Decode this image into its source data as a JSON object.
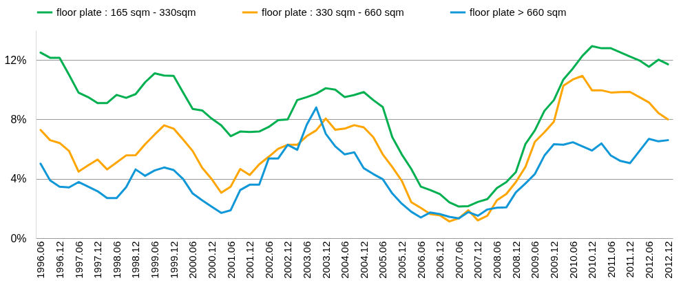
{
  "chart_data": {
    "type": "line",
    "categories": [
      "1996.06",
      null,
      "1996.12",
      null,
      "1997.06",
      null,
      "1997.12",
      null,
      "1998.06",
      null,
      "1998.12",
      null,
      "1999.06",
      null,
      "1999.12",
      null,
      "2000.06",
      null,
      "2000.12",
      null,
      "2001.06",
      null,
      "2001.12",
      null,
      "2002.06",
      null,
      "2002.12",
      null,
      "2003.06",
      null,
      "2003.12",
      null,
      "2004.06",
      null,
      "2004.12",
      null,
      "2005.06",
      null,
      "2005.12",
      null,
      "2006.06",
      null,
      "2006.12",
      null,
      "2007.06",
      null,
      "2007.12",
      null,
      "2008.06",
      null,
      "2008.12",
      null,
      "2009.06",
      null,
      "2009.12",
      null,
      "2010.06",
      null,
      "2010.12",
      null,
      "2011.06",
      null,
      "2011.12",
      null,
      "2012.06",
      null,
      "2012.12"
    ],
    "series": [
      {
        "name": "floor plate : 165 sqm - 330sqm",
        "color": "#00b050",
        "values": [
          12.5,
          12.15,
          12.15,
          11.0,
          9.8,
          9.5,
          9.1,
          9.1,
          9.65,
          9.45,
          9.7,
          10.5,
          11.1,
          10.95,
          10.93,
          9.8,
          8.7,
          8.6,
          8.05,
          7.6,
          6.87,
          7.18,
          7.15,
          7.18,
          7.49,
          7.95,
          8.0,
          9.3,
          9.5,
          9.73,
          10.1,
          10.0,
          9.5,
          9.64,
          9.84,
          9.3,
          8.83,
          6.8,
          5.64,
          4.66,
          3.47,
          3.24,
          2.97,
          2.42,
          2.13,
          2.16,
          2.44,
          2.63,
          3.37,
          3.78,
          4.45,
          6.33,
          7.26,
          8.57,
          9.3,
          10.69,
          11.43,
          12.28,
          12.93,
          12.79,
          12.79,
          12.51,
          12.23,
          11.97,
          11.54,
          12.02,
          11.71
        ]
      },
      {
        "name": "floor plate : 330 sqm - 660 sqm",
        "color": "#ffa500",
        "values": [
          7.29,
          6.6,
          6.41,
          5.87,
          4.48,
          4.9,
          5.3,
          4.63,
          5.1,
          5.57,
          5.59,
          6.33,
          6.98,
          7.6,
          7.38,
          6.64,
          5.87,
          4.74,
          3.98,
          3.06,
          3.47,
          4.66,
          4.25,
          4.97,
          5.48,
          6.02,
          6.29,
          6.29,
          6.87,
          7.26,
          8.06,
          7.3,
          7.38,
          7.61,
          7.46,
          6.8,
          5.64,
          4.79,
          3.86,
          2.42,
          2.04,
          1.62,
          1.54,
          1.13,
          1.34,
          1.88,
          1.2,
          1.51,
          2.55,
          2.98,
          3.78,
          4.79,
          6.49,
          7.13,
          7.85,
          10.27,
          10.69,
          10.93,
          9.96,
          9.96,
          9.81,
          9.84,
          9.85,
          9.5,
          9.14,
          8.42,
          8.0
        ]
      },
      {
        "name": "floor plate > 660 sqm",
        "color": "#1097d8",
        "values": [
          5.02,
          3.89,
          3.47,
          3.42,
          3.78,
          3.47,
          3.16,
          2.7,
          2.7,
          3.43,
          4.63,
          4.2,
          4.56,
          4.76,
          4.59,
          3.98,
          3.01,
          2.55,
          2.12,
          1.7,
          1.88,
          3.24,
          3.6,
          3.6,
          5.37,
          5.37,
          6.29,
          5.95,
          7.64,
          8.8,
          7.03,
          6.18,
          5.64,
          5.78,
          4.71,
          4.32,
          3.97,
          3.01,
          2.32,
          1.78,
          1.39,
          1.73,
          1.62,
          1.44,
          1.33,
          1.76,
          1.51,
          1.93,
          2.05,
          2.08,
          3.09,
          3.68,
          4.32,
          5.56,
          6.33,
          6.29,
          6.46,
          6.18,
          5.9,
          6.38,
          5.56,
          5.2,
          5.05,
          5.87,
          6.69,
          6.52,
          6.6
        ]
      }
    ],
    "ylim": [
      0,
      14
    ],
    "yticks": [
      {
        "value": 0,
        "label": "0%"
      },
      {
        "value": 4,
        "label": "4%"
      },
      {
        "value": 8,
        "label": "8%"
      },
      {
        "value": 12,
        "label": "12%"
      }
    ],
    "grid": "y",
    "legend": "top",
    "line_style": "solid"
  }
}
